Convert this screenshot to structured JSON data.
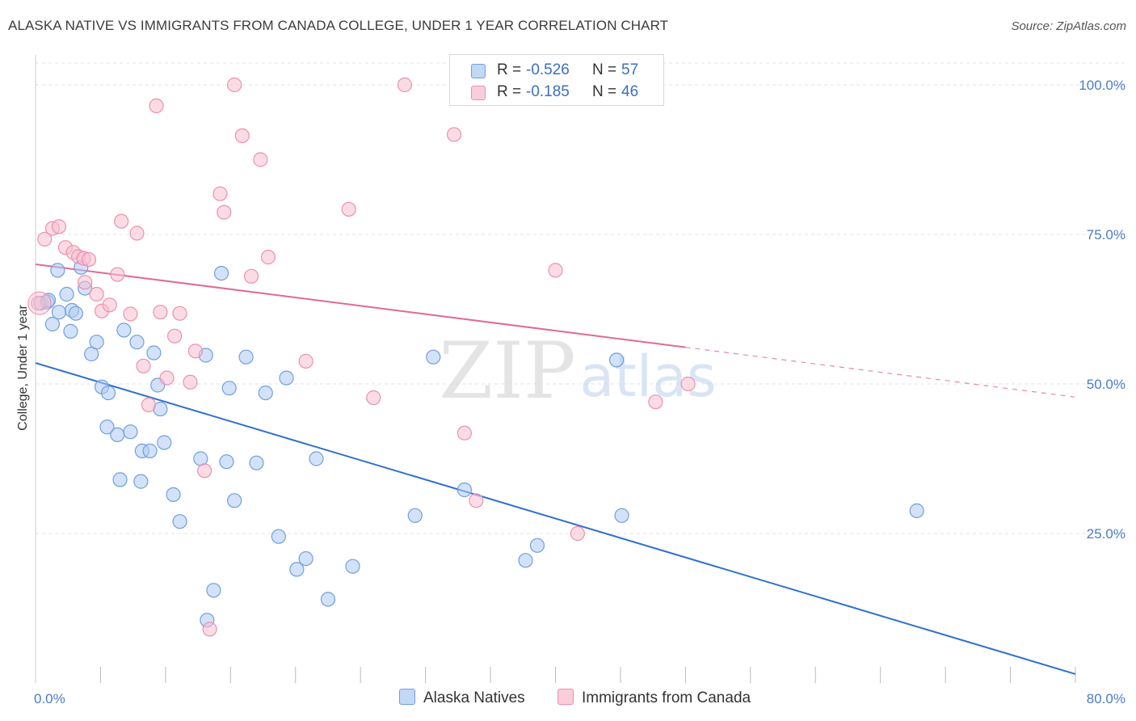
{
  "title": "ALASKA NATIVE VS IMMIGRANTS FROM CANADA COLLEGE, UNDER 1 YEAR CORRELATION CHART",
  "source": "Source: ZipAtlas.com",
  "colors": {
    "blue_fill": "#aecbf2",
    "blue_stroke": "#6f9fe0",
    "blue_line": "#2f6fd0",
    "pink_fill": "#f7c0d0",
    "pink_stroke": "#ee8fab",
    "pink_line": "#e06b93",
    "tick_label": "#4a7cc7",
    "grid": "#e3e3e3"
  },
  "legend": {
    "rows": [
      {
        "r_label": "R =",
        "r_value": "-0.526",
        "n_label": "N =",
        "n_value": "57"
      },
      {
        "r_label": "R =",
        "r_value": "-0.185",
        "n_label": "N =",
        "n_value": "46"
      }
    ]
  },
  "bottom_legend": {
    "series1": "Alaska Natives",
    "series2": "Immigrants from Canada"
  },
  "watermark": {
    "zip": "ZIP",
    "atlas": "atlas"
  },
  "chart_data": {
    "type": "scatter",
    "title": "ALASKA NATIVE VS IMMIGRANTS FROM CANADA COLLEGE, UNDER 1 YEAR CORRELATION CHART",
    "xlabel": "",
    "ylabel": "College, Under 1 year",
    "xlim": [
      0,
      80
    ],
    "ylim": [
      0,
      105
    ],
    "x_tick_labels": [
      {
        "value": 0,
        "label": "0.0%"
      },
      {
        "value": 80,
        "label": "80.0%"
      }
    ],
    "y_tick_labels": [
      {
        "value": 25,
        "label": "25.0%"
      },
      {
        "value": 50,
        "label": "50.0%"
      },
      {
        "value": 75,
        "label": "75.0%"
      },
      {
        "value": 100,
        "label": "100.0%"
      }
    ],
    "y_gridlines": [
      25,
      50,
      75,
      100
    ],
    "series": [
      {
        "name": "Alaska Natives",
        "color": "blue",
        "r": -0.526,
        "n": 57,
        "trend": {
          "x0": 0,
          "y0": 53.5,
          "x1": 80,
          "y1": 1.5,
          "dashed_from": null
        },
        "points": [
          [
            0.4,
            63.5
          ],
          [
            0.9,
            63.7
          ],
          [
            1.3,
            60
          ],
          [
            1.7,
            69
          ],
          [
            1.8,
            62
          ],
          [
            2.4,
            65
          ],
          [
            2.7,
            58.8
          ],
          [
            2.8,
            62.3
          ],
          [
            3.1,
            61.8
          ],
          [
            3.5,
            69.5
          ],
          [
            3.8,
            66
          ],
          [
            4.3,
            55
          ],
          [
            4.7,
            57
          ],
          [
            5.1,
            49.5
          ],
          [
            5.5,
            42.8
          ],
          [
            5.6,
            48.5
          ],
          [
            6.3,
            41.5
          ],
          [
            6.5,
            34
          ],
          [
            6.8,
            59
          ],
          [
            7.3,
            42
          ],
          [
            7.8,
            57
          ],
          [
            8.1,
            33.7
          ],
          [
            8.2,
            38.8
          ],
          [
            8.8,
            38.8
          ],
          [
            9.1,
            55.2
          ],
          [
            9.4,
            49.8
          ],
          [
            9.6,
            45.8
          ],
          [
            9.9,
            40.2
          ],
          [
            10.6,
            31.5
          ],
          [
            11.1,
            27
          ],
          [
            12.7,
            37.5
          ],
          [
            13.1,
            54.8
          ],
          [
            13.2,
            10.5
          ],
          [
            13.7,
            15.5
          ],
          [
            14.7,
            37
          ],
          [
            14.9,
            49.3
          ],
          [
            15.3,
            30.5
          ],
          [
            14.3,
            68.5
          ],
          [
            16.2,
            54.5
          ],
          [
            17.0,
            36.8
          ],
          [
            17.7,
            48.5
          ],
          [
            18.7,
            24.5
          ],
          [
            19.3,
            51
          ],
          [
            20.1,
            19
          ],
          [
            20.8,
            20.8
          ],
          [
            21.6,
            37.5
          ],
          [
            22.5,
            14
          ],
          [
            24.4,
            19.5
          ],
          [
            29.2,
            28
          ],
          [
            30.6,
            54.5
          ],
          [
            33.0,
            32.3
          ],
          [
            37.7,
            20.5
          ],
          [
            38.6,
            23
          ],
          [
            44.7,
            54
          ],
          [
            45.1,
            28
          ],
          [
            67.8,
            28.8
          ],
          [
            1.0,
            64
          ]
        ]
      },
      {
        "name": "Immigrants from Canada",
        "color": "pink",
        "r": -0.185,
        "n": 46,
        "trend": {
          "x0": 0,
          "y0": 70,
          "x1": 80,
          "y1": 47.8,
          "dashed_from": 50
        },
        "points": [
          [
            0.2,
            63.5
          ],
          [
            0.7,
            74.2
          ],
          [
            1.3,
            76
          ],
          [
            1.8,
            76.3
          ],
          [
            2.3,
            72.8
          ],
          [
            2.9,
            72
          ],
          [
            3.3,
            71.3
          ],
          [
            3.7,
            71
          ],
          [
            3.8,
            67
          ],
          [
            4.1,
            70.8
          ],
          [
            4.7,
            65
          ],
          [
            5.1,
            62.2
          ],
          [
            5.7,
            63.2
          ],
          [
            6.3,
            68.3
          ],
          [
            6.6,
            77.2
          ],
          [
            7.3,
            61.7
          ],
          [
            7.8,
            75.2
          ],
          [
            8.3,
            53
          ],
          [
            8.7,
            46.5
          ],
          [
            9.3,
            96.5
          ],
          [
            9.6,
            62
          ],
          [
            10.1,
            51
          ],
          [
            10.7,
            58
          ],
          [
            11.1,
            61.8
          ],
          [
            11.9,
            50.3
          ],
          [
            12.3,
            55.5
          ],
          [
            13.0,
            35.5
          ],
          [
            13.4,
            9
          ],
          [
            14.2,
            81.8
          ],
          [
            14.5,
            78.7
          ],
          [
            15.3,
            100
          ],
          [
            15.9,
            91.5
          ],
          [
            16.6,
            68
          ],
          [
            17.3,
            87.5
          ],
          [
            17.9,
            71.2
          ],
          [
            20.8,
            53.8
          ],
          [
            24.1,
            79.2
          ],
          [
            26.0,
            47.7
          ],
          [
            28.4,
            100
          ],
          [
            32.2,
            91.7
          ],
          [
            33.0,
            41.8
          ],
          [
            33.9,
            30.5
          ],
          [
            40.0,
            69
          ],
          [
            41.7,
            25
          ],
          [
            47.7,
            47
          ],
          [
            50.2,
            50
          ]
        ]
      }
    ]
  }
}
